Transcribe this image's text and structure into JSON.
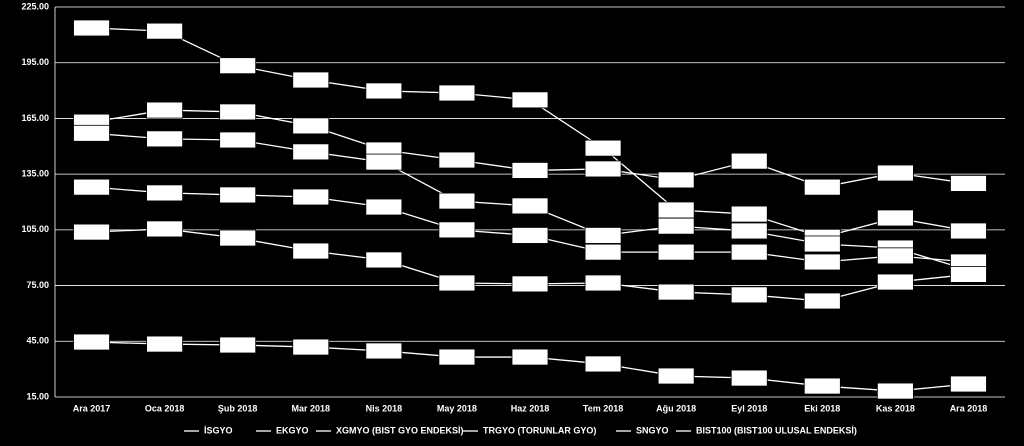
{
  "chart_data": {
    "type": "line",
    "categories": [
      "Ara 2017",
      "Oca 2018",
      "Şub 2018",
      "Mar 2018",
      "Nis 2018",
      "May 2018",
      "Haz 2018",
      "Tem 2018",
      "Ağu 2018",
      "Eyl 2018",
      "Eki 2018",
      "Kas 2018",
      "Ara 2018"
    ],
    "series": [
      {
        "name": "İSGYO",
        "color": "#ffffff",
        "values": [
          213.7,
          212,
          193.4,
          185.7,
          179.8,
          178.7,
          175,
          149,
          115.7,
          113.5,
          101,
          111.4,
          104.4
        ]
      },
      {
        "name": "EKGYO",
        "color": "#ffffff",
        "values": [
          163,
          169.5,
          168.5,
          161,
          148,
          142.6,
          137,
          137.8,
          131.9,
          142,
          128,
          135.6,
          130
        ]
      },
      {
        "name": "XGMYO (BIST GYO ENDEKSİ)",
        "color": "#ffffff",
        "values": [
          157,
          154,
          153.4,
          147,
          141.5,
          120.5,
          117.9,
          102,
          107,
          104.4,
          97.4,
          95.2,
          83.4
        ]
      },
      {
        "name": "TRGYO (TORUNLAR GYO)",
        "color": "#ffffff",
        "values": [
          128,
          124.9,
          123.8,
          122.7,
          117.3,
          105,
          102,
          93,
          93,
          93,
          87.7,
          91,
          87.7
        ]
      },
      {
        "name": "SNGYO",
        "color": "#ffffff",
        "values": [
          103.8,
          105.5,
          100.6,
          93.6,
          88.8,
          76.4,
          75.9,
          76.4,
          71.5,
          70,
          66.7,
          76.9,
          81
        ]
      },
      {
        "name": "BIST100 (BIST100 ULUSAL ENDEKSİ)",
        "color": "#ffffff",
        "values": [
          44.6,
          43.5,
          43,
          41.9,
          39.8,
          36.5,
          36.5,
          32.8,
          26.3,
          25.2,
          20.9,
          18.2,
          22
        ]
      }
    ],
    "ylim": [
      15,
      225
    ],
    "yticks": [
      {
        "value": 15,
        "label": "15.00"
      },
      {
        "value": 45,
        "label": "45.00"
      },
      {
        "value": 75,
        "label": "75.00"
      },
      {
        "value": 105,
        "label": "105.00"
      },
      {
        "value": 135,
        "label": "135.00"
      },
      {
        "value": 165,
        "label": "165.00"
      },
      {
        "value": 195,
        "label": "195.00"
      },
      {
        "value": 225,
        "label": "225.00"
      }
    ],
    "grid": true,
    "legend": "bottom"
  }
}
